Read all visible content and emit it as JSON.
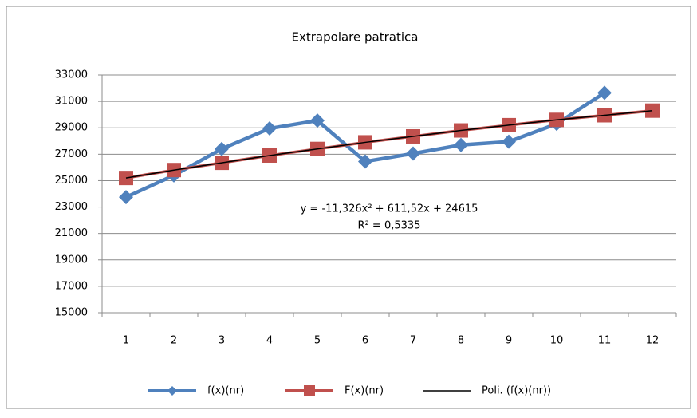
{
  "chart_data": {
    "type": "line",
    "title": "Extrapolare patratica",
    "categories": [
      "1",
      "2",
      "3",
      "4",
      "5",
      "6",
      "7",
      "8",
      "9",
      "10",
      "11",
      "12"
    ],
    "series": [
      {
        "name": "f(x)(nr)",
        "color": "#4f81bd",
        "marker": "diamond",
        "values": [
          23750,
          25400,
          27400,
          28950,
          29550,
          26450,
          27050,
          27700,
          27950,
          29300,
          31650,
          null
        ]
      },
      {
        "name": "F(x)(nr)",
        "color": "#c0504d",
        "marker": "square",
        "values": [
          25200,
          25800,
          26350,
          26900,
          27400,
          27900,
          28350,
          28800,
          29200,
          29600,
          29950,
          30300
        ]
      },
      {
        "name": "Poli. (f(x)(nr))",
        "color": "#000000",
        "marker": "none",
        "values": [
          25200,
          25800,
          26350,
          26900,
          27400,
          27900,
          28350,
          28800,
          29200,
          29600,
          29950,
          30300
        ]
      }
    ],
    "annotations": [
      "y = -11,326x² + 611,52x + 24615",
      "R² = 0,5335"
    ],
    "ylim": [
      15000,
      33000
    ],
    "yticks": [
      15000,
      17000,
      19000,
      21000,
      23000,
      25000,
      27000,
      29000,
      31000,
      33000
    ],
    "grid": true,
    "legend": "bottom"
  }
}
